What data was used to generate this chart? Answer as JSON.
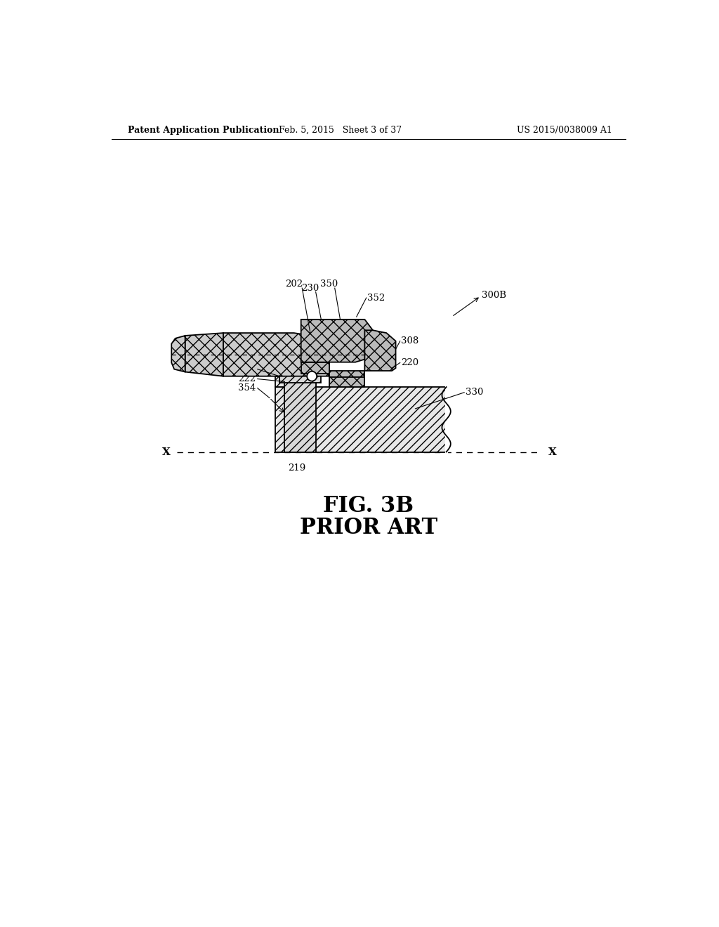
{
  "header_left": "Patent Application Publication",
  "header_middle": "Feb. 5, 2015   Sheet 3 of 37",
  "header_right": "US 2015/0038009 A1",
  "title_line1": "FIG. 3B",
  "title_line2": "PRIOR ART",
  "background_color": "#ffffff"
}
